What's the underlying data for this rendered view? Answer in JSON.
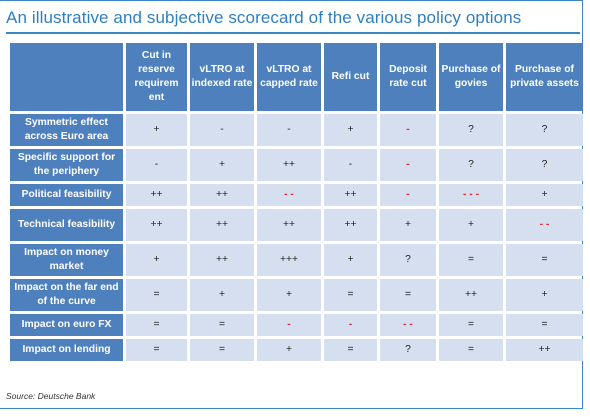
{
  "title": "An illustrative and subjective scorecard of the various policy options",
  "columns": [
    "Cut in reserve requirem ent",
    "vLTRO at indexed rate",
    "vLTRO at capped rate",
    "Refi cut",
    "Deposit rate cut",
    "Purchase of govies",
    "Purchase of private assets"
  ],
  "rows": [
    {
      "label": "Symmetric effect across Euro area",
      "cells": [
        {
          "v": "+",
          "red": false
        },
        {
          "v": "-",
          "red": false
        },
        {
          "v": "-",
          "red": false
        },
        {
          "v": "+",
          "red": false
        },
        {
          "v": "-",
          "red": true
        },
        {
          "v": "?",
          "red": false
        },
        {
          "v": "?",
          "red": false
        }
      ]
    },
    {
      "label": "Specific support for the periphery",
      "cells": [
        {
          "v": "-",
          "red": false
        },
        {
          "v": "+",
          "red": false
        },
        {
          "v": "++",
          "red": false
        },
        {
          "v": "-",
          "red": false
        },
        {
          "v": "-",
          "red": true
        },
        {
          "v": "?",
          "red": false
        },
        {
          "v": "?",
          "red": false
        }
      ]
    },
    {
      "label": "Political feasibility",
      "cells": [
        {
          "v": "++",
          "red": false
        },
        {
          "v": "++",
          "red": false
        },
        {
          "v": "- -",
          "red": true
        },
        {
          "v": "++",
          "red": false
        },
        {
          "v": "-",
          "red": true
        },
        {
          "v": "- - -",
          "red": true
        },
        {
          "v": "+",
          "red": false
        }
      ]
    },
    {
      "label": "Technical feasibility",
      "cells": [
        {
          "v": "++",
          "red": false
        },
        {
          "v": "++",
          "red": false
        },
        {
          "v": "++",
          "red": false
        },
        {
          "v": "++",
          "red": false
        },
        {
          "v": "+",
          "red": false
        },
        {
          "v": "+",
          "red": false
        },
        {
          "v": "- -",
          "red": true
        }
      ]
    },
    {
      "label": "Impact on money market",
      "cells": [
        {
          "v": "+",
          "red": false
        },
        {
          "v": "++",
          "red": false
        },
        {
          "v": "+++",
          "red": false
        },
        {
          "v": "+",
          "red": false
        },
        {
          "v": "?",
          "red": false
        },
        {
          "v": "=",
          "red": false
        },
        {
          "v": "=",
          "red": false
        }
      ]
    },
    {
      "label": "Impact on the far end of the curve",
      "cells": [
        {
          "v": "=",
          "red": false
        },
        {
          "v": "+",
          "red": false
        },
        {
          "v": "+",
          "red": false
        },
        {
          "v": "=",
          "red": false
        },
        {
          "v": "=",
          "red": false
        },
        {
          "v": "++",
          "red": false
        },
        {
          "v": "+",
          "red": false
        }
      ]
    },
    {
      "label": "Impact on euro FX",
      "cells": [
        {
          "v": "=",
          "red": false
        },
        {
          "v": "=",
          "red": false
        },
        {
          "v": "-",
          "red": true
        },
        {
          "v": "-",
          "red": true
        },
        {
          "v": "- -",
          "red": true
        },
        {
          "v": "=",
          "red": false
        },
        {
          "v": "=",
          "red": false
        }
      ]
    },
    {
      "label": "Impact on lending",
      "cells": [
        {
          "v": "=",
          "red": false
        },
        {
          "v": "=",
          "red": false
        },
        {
          "v": "+",
          "red": false
        },
        {
          "v": "=",
          "red": false
        },
        {
          "v": "?",
          "red": false
        },
        {
          "v": "=",
          "red": false
        },
        {
          "v": "++",
          "red": false
        }
      ]
    }
  ],
  "source": "Source: Deutsche Bank",
  "colors": {
    "header_bg": "#4f80be",
    "cell_bg": "#d6dfef",
    "negative": "#e8262c",
    "accent": "#2e7fc2"
  }
}
